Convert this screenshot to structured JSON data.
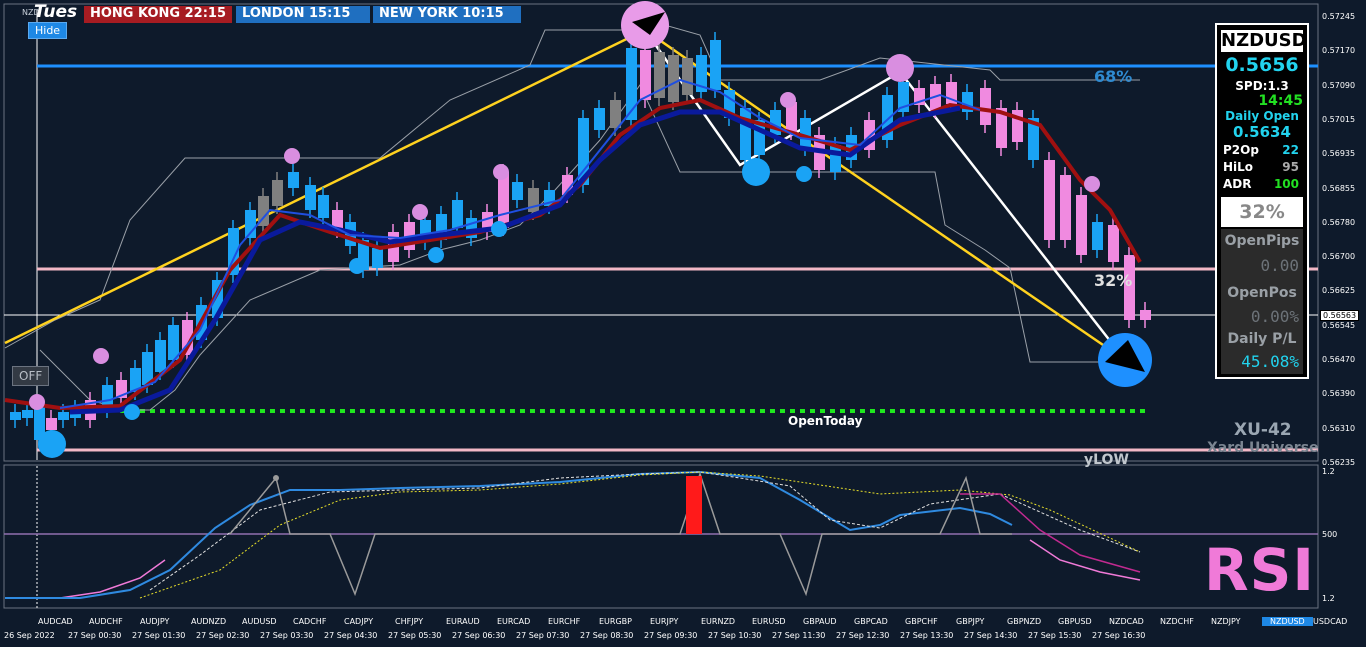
{
  "header": {
    "day_label": "Tues",
    "symbol_tiny": "NZD",
    "sessions": [
      {
        "label": "HONG KONG  22:15"
      },
      {
        "label": "LONDON   15:15"
      },
      {
        "label": "NEW YORK  10:15"
      }
    ],
    "hide_label": "Hide",
    "off_label": "OFF"
  },
  "panel": {
    "symbol": "NZDUSD",
    "price": "0.5656",
    "spread": "SPD:1.3",
    "time": "14:45",
    "daily_open_label": "Daily Open",
    "daily_open": "0.5634",
    "p2op_label": "P2Op",
    "p2op": "22",
    "hilo_label": "HiLo",
    "hilo": "95",
    "adr_label": "ADR",
    "adr": "100",
    "pct": "32%",
    "open_pips_label": "OpenPips",
    "open_pips": "0.00",
    "open_pos_label": "OpenPos",
    "open_pos": "0.00%",
    "daily_pl_label": "Daily P/L",
    "daily_pl": "45.08%"
  },
  "chart": {
    "price_tag": "0.56563",
    "open_today": "OpenToday",
    "pct_68": "68%",
    "pct_32": "32%",
    "brand_1": "XU-42",
    "brand_2": "Xard Universe",
    "ylow": "yLOW",
    "rsi": "RSI",
    "price_axis": [
      "0.57245",
      "0.57170",
      "0.57090",
      "0.57015",
      "0.56935",
      "0.56855",
      "0.56780",
      "0.56700",
      "0.56625",
      "0.56545",
      "0.56470",
      "0.56390",
      "0.56310",
      "0.56235"
    ],
    "rsi_axis": [
      "1.2",
      "500",
      "1.2"
    ],
    "time_axis": [
      "26 Sep 2022",
      "27 Sep 00:30",
      "27 Sep 01:30",
      "27 Sep 02:30",
      "27 Sep 03:30",
      "27 Sep 04:30",
      "27 Sep 05:30",
      "27 Sep 06:30",
      "27 Sep 07:30",
      "27 Sep 08:30",
      "27 Sep 09:30",
      "27 Sep 10:30",
      "27 Sep 11:30",
      "27 Sep 12:30",
      "27 Sep 13:30",
      "27 Sep 14:30",
      "27 Sep 15:30",
      "27 Sep 16:30"
    ],
    "pairs": [
      "AUDCAD",
      "AUDCHF",
      "AUDJPY",
      "AUDNZD",
      "AUDUSD",
      "CADCHF",
      "CADJPY",
      "CHFJPY",
      "EURAUD",
      "EURCAD",
      "EURCHF",
      "EURGBP",
      "EURJPY",
      "EURNZD",
      "EURUSD",
      "GBPAUD",
      "GBPCAD",
      "GBPCHF",
      "GBPJPY",
      "GBPNZD",
      "GBPUSD",
      "NZDCAD",
      "NZDCHF",
      "NZDJPY",
      "NZDUSD",
      "USDCAD"
    ],
    "active_pair": "NZDUSD",
    "colors": {
      "bull": "#1aa3f5",
      "bear": "#f08ae0",
      "doji": "#808080",
      "ma_blue": "#0b1fa8",
      "ma_red": "#a01010",
      "fib": "#ffd21f",
      "zig": "#ffffff",
      "open_today": "#1ee81e",
      "pivot_pink": "#f2b8c6",
      "level_blue": "#1e90ff"
    }
  }
}
